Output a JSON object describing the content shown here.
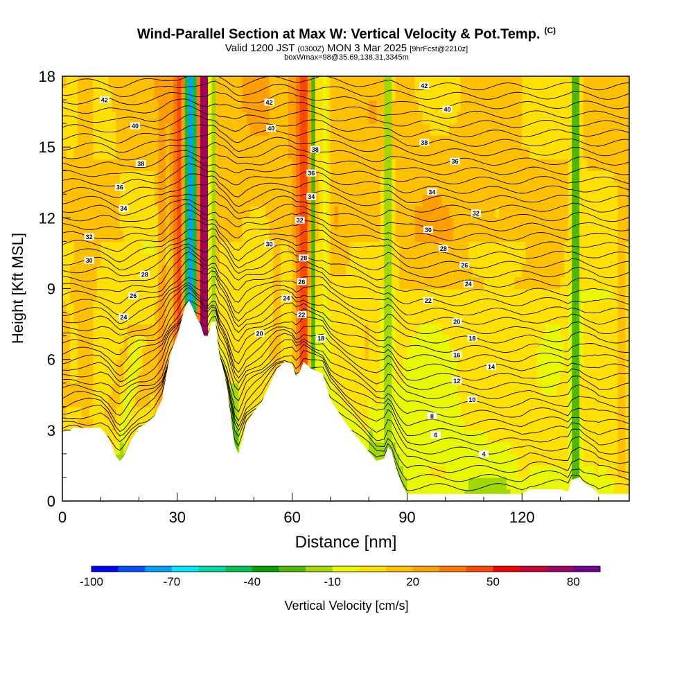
{
  "chart_data": {
    "type": "heatmap",
    "title": "Wind-Parallel Section at Max W: Vertical Velocity & Pot.Temp.",
    "title_mark": "(C)",
    "subtitle": {
      "valid": "Valid 1200 JST",
      "utc": "(0300Z)",
      "date": "MON 3 Mar 2025",
      "forecast": "[9hrFcst@2210z]"
    },
    "box_info": "boxWmax=98@35.69,138.31,3345m",
    "xlabel": "Distance [nm]",
    "ylabel": "Height [Kft MSL]",
    "xlim": [
      0,
      148
    ],
    "ylim": [
      0,
      18
    ],
    "x_ticks": [
      "0",
      "30",
      "60",
      "90",
      "120"
    ],
    "y_ticks": [
      "0",
      "3",
      "6",
      "9",
      "12",
      "15",
      "18"
    ],
    "colorbar": {
      "label": "Vertical Velocity [cm/s]",
      "tick_labels": [
        "-100",
        "-70",
        "-40",
        "-10",
        "20",
        "50",
        "80"
      ],
      "bins": [
        -100,
        -90,
        -80,
        -70,
        -60,
        -50,
        -40,
        -30,
        -20,
        -10,
        0,
        10,
        20,
        30,
        40,
        50,
        60,
        70,
        80,
        90
      ],
      "colors": [
        "#0000ff",
        "#0050ff",
        "#00a0ff",
        "#00e8ff",
        "#00d8a0",
        "#00c050",
        "#00a000",
        "#50b800",
        "#a0d800",
        "#e8f800",
        "#ffe000",
        "#ffc000",
        "#ffa000",
        "#ff7800",
        "#ff4800",
        "#f00000",
        "#c80030",
        "#a00060",
        "#700090"
      ]
    },
    "theta_labels": [
      {
        "v": "42",
        "x": 11,
        "y": 17.0
      },
      {
        "v": "40",
        "x": 19,
        "y": 15.9
      },
      {
        "v": "38",
        "x": 20.5,
        "y": 14.3
      },
      {
        "v": "36",
        "x": 15,
        "y": 13.3
      },
      {
        "v": "34",
        "x": 16,
        "y": 12.4
      },
      {
        "v": "32",
        "x": 7,
        "y": 11.2
      },
      {
        "v": "30",
        "x": 7,
        "y": 10.2
      },
      {
        "v": "28",
        "x": 21.5,
        "y": 9.6
      },
      {
        "v": "26",
        "x": 18.5,
        "y": 8.7
      },
      {
        "v": "24",
        "x": 16,
        "y": 7.8
      },
      {
        "v": "42",
        "x": 54,
        "y": 16.9
      },
      {
        "v": "40",
        "x": 54.5,
        "y": 15.8
      },
      {
        "v": "38",
        "x": 66,
        "y": 14.9
      },
      {
        "v": "36",
        "x": 65,
        "y": 13.9
      },
      {
        "v": "34",
        "x": 65,
        "y": 12.9
      },
      {
        "v": "32",
        "x": 62,
        "y": 11.9
      },
      {
        "v": "30",
        "x": 54,
        "y": 10.9
      },
      {
        "v": "28",
        "x": 63,
        "y": 10.3
      },
      {
        "v": "26",
        "x": 62.5,
        "y": 9.3
      },
      {
        "v": "24",
        "x": 58.5,
        "y": 8.6
      },
      {
        "v": "22",
        "x": 62.5,
        "y": 7.9
      },
      {
        "v": "20",
        "x": 51.5,
        "y": 7.1
      },
      {
        "v": "18",
        "x": 67.5,
        "y": 6.9
      },
      {
        "v": "42",
        "x": 94.5,
        "y": 17.6
      },
      {
        "v": "40",
        "x": 100.5,
        "y": 16.6
      },
      {
        "v": "38",
        "x": 94.5,
        "y": 15.2
      },
      {
        "v": "36",
        "x": 102.5,
        "y": 14.4
      },
      {
        "v": "34",
        "x": 96.5,
        "y": 13.1
      },
      {
        "v": "32",
        "x": 108,
        "y": 12.2
      },
      {
        "v": "30",
        "x": 95.5,
        "y": 11.5
      },
      {
        "v": "28",
        "x": 99.5,
        "y": 10.7
      },
      {
        "v": "26",
        "x": 105,
        "y": 10.0
      },
      {
        "v": "24",
        "x": 106,
        "y": 9.2
      },
      {
        "v": "22",
        "x": 95.5,
        "y": 8.5
      },
      {
        "v": "20",
        "x": 103,
        "y": 7.6
      },
      {
        "v": "18",
        "x": 107,
        "y": 6.9
      },
      {
        "v": "16",
        "x": 103,
        "y": 6.2
      },
      {
        "v": "14",
        "x": 112,
        "y": 5.7
      },
      {
        "v": "12",
        "x": 103,
        "y": 5.1
      },
      {
        "v": "10",
        "x": 107,
        "y": 4.3
      },
      {
        "v": "8",
        "x": 96.5,
        "y": 3.6
      },
      {
        "v": "6",
        "x": 97.5,
        "y": 2.8
      },
      {
        "v": "4",
        "x": 110,
        "y": 2.0
      }
    ],
    "terrain": [
      [
        0,
        2.9
      ],
      [
        3,
        3.1
      ],
      [
        10,
        3.1
      ],
      [
        12,
        2.7
      ],
      [
        14,
        1.9
      ],
      [
        15,
        1.7
      ],
      [
        16,
        1.9
      ],
      [
        18,
        2.6
      ],
      [
        20,
        3.1
      ],
      [
        22,
        3.3
      ],
      [
        24,
        3.6
      ],
      [
        26,
        4.3
      ],
      [
        27,
        5.2
      ],
      [
        28,
        6.1
      ],
      [
        29,
        6.6
      ],
      [
        30,
        7.0
      ],
      [
        32,
        8.2
      ],
      [
        33,
        8.5
      ],
      [
        34,
        8.2
      ],
      [
        35,
        7.8
      ],
      [
        36,
        7.5
      ],
      [
        37,
        7.0
      ],
      [
        38,
        7.0
      ],
      [
        39,
        7.6
      ],
      [
        40,
        7.6
      ],
      [
        41,
        6.2
      ],
      [
        42,
        5.6
      ],
      [
        43,
        4.8
      ],
      [
        44,
        3.5
      ],
      [
        45,
        2.4
      ],
      [
        46,
        2.0
      ],
      [
        47,
        2.6
      ],
      [
        48,
        3.3
      ],
      [
        50,
        3.8
      ],
      [
        52,
        4.2
      ],
      [
        54,
        4.9
      ],
      [
        56,
        5.6
      ],
      [
        58,
        5.9
      ],
      [
        60,
        5.8
      ],
      [
        61,
        5.3
      ],
      [
        62,
        5.5
      ],
      [
        63,
        5.9
      ],
      [
        65,
        5.6
      ],
      [
        68,
        5.4
      ],
      [
        70,
        4.3
      ],
      [
        72,
        3.8
      ],
      [
        74,
        3.3
      ],
      [
        76,
        2.9
      ],
      [
        78,
        2.5
      ],
      [
        80,
        2.1
      ],
      [
        81,
        1.9
      ],
      [
        82,
        1.7
      ],
      [
        84,
        1.8
      ],
      [
        85,
        2.3
      ],
      [
        86,
        2.1
      ],
      [
        87,
        1.5
      ],
      [
        88,
        1.0
      ],
      [
        89,
        0.6
      ],
      [
        90,
        0.3
      ],
      [
        120,
        0.3
      ],
      [
        122,
        0.5
      ],
      [
        127,
        0.5
      ],
      [
        130,
        0.5
      ],
      [
        132,
        0.4
      ],
      [
        133,
        0.9
      ],
      [
        135,
        1.0
      ],
      [
        136,
        0.8
      ],
      [
        139,
        0.5
      ],
      [
        140,
        0.3
      ],
      [
        148,
        0.3
      ]
    ],
    "velocity_features": [
      {
        "x": 30.5,
        "w": 2.0,
        "v": 45
      },
      {
        "x": 33,
        "w": 0.9,
        "v": -75
      },
      {
        "x": 34,
        "w": 0.9,
        "v": -95
      },
      {
        "x": 35,
        "w": 0.9,
        "v": -55
      },
      {
        "x": 36.2,
        "w": 1.0,
        "v": 60
      },
      {
        "x": 37.5,
        "w": 1.8,
        "v": 88
      },
      {
        "x": 39,
        "w": 0.8,
        "v": -40
      },
      {
        "x": 63,
        "w": 2.2,
        "v": 50
      },
      {
        "x": 65.5,
        "w": 0.8,
        "v": -30
      },
      {
        "x": 68.5,
        "w": 1.2,
        "v": -5
      },
      {
        "x": 85,
        "w": 1.2,
        "v": -20
      },
      {
        "x": 134,
        "w": 1.0,
        "v": -40
      },
      {
        "x": 26,
        "w": 1.2,
        "v": 25
      },
      {
        "x": 56,
        "w": 1.5,
        "v": 15
      },
      {
        "x": 6,
        "w": 2,
        "v": 15
      },
      {
        "x": 146,
        "w": 2,
        "v": 12
      }
    ]
  }
}
